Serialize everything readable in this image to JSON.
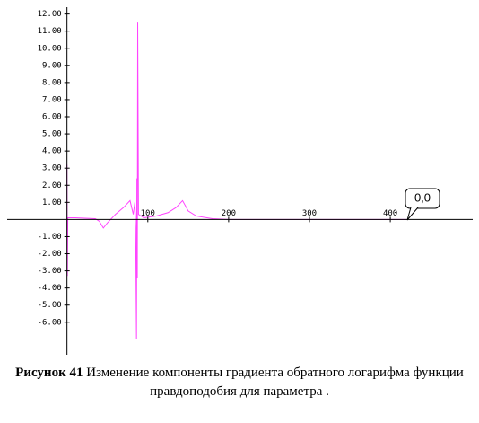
{
  "chart_data": {
    "type": "line",
    "figure_label": "Рисунок 41",
    "caption": "Изменение компоненты градиента обратного логарифма функции правдоподобия для параметра .",
    "annotation": "0,0",
    "x": [
      0,
      0.5,
      1,
      10,
      35,
      40,
      45,
      50,
      60,
      70,
      78,
      82,
      84,
      85,
      86,
      86.5,
      87,
      87.5,
      88,
      88.5,
      95,
      110,
      125,
      135,
      143,
      150,
      160,
      180,
      200,
      300,
      420
    ],
    "series": [
      {
        "color": "#ff44ff",
        "values": [
          3.2,
          -3.3,
          0.1,
          0.1,
          0.05,
          -0.1,
          -0.5,
          -0.2,
          0.3,
          0.7,
          1.1,
          0.3,
          1.0,
          -0.5,
          -7.0,
          2.4,
          -3.4,
          11.5,
          5.8,
          0.3,
          0.1,
          0.2,
          0.4,
          0.7,
          1.1,
          0.5,
          0.2,
          0.05,
          0,
          0,
          0
        ]
      }
    ],
    "xlim": [
      -74,
      502
    ],
    "ylim": [
      -7.9,
      12.4
    ],
    "xticks": [
      100,
      200,
      300,
      400
    ],
    "yticks": [
      {
        "value": 12,
        "label": "12.00"
      },
      {
        "value": 11,
        "label": "11.00"
      },
      {
        "value": 10,
        "label": "10.00"
      },
      {
        "value": 9,
        "label": "9.00"
      },
      {
        "value": 8,
        "label": "8.00"
      },
      {
        "value": 7,
        "label": "7.00"
      },
      {
        "value": 6,
        "label": "6.00"
      },
      {
        "value": 5,
        "label": "5.00"
      },
      {
        "value": 4,
        "label": "4.00"
      },
      {
        "value": 3,
        "label": "3.00"
      },
      {
        "value": 2,
        "label": "2.00"
      },
      {
        "value": 1,
        "label": "1.00"
      },
      {
        "value": -1,
        "label": "-1.00"
      },
      {
        "value": -2,
        "label": "-2.00"
      },
      {
        "value": -3,
        "label": "-3.00"
      },
      {
        "value": -4,
        "label": "-4.00"
      },
      {
        "value": -5,
        "label": "-5.00"
      },
      {
        "value": -6,
        "label": "-6.00"
      }
    ]
  }
}
